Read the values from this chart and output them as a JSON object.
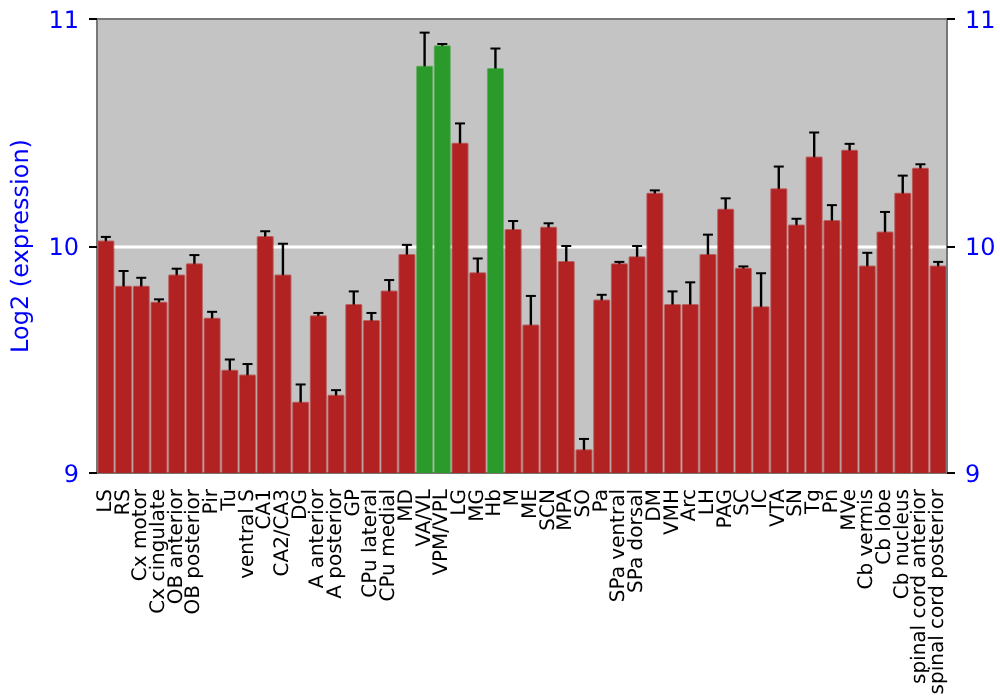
{
  "chart_data": {
    "type": "bar",
    "ylabel": "Log2 (expression)",
    "categories": [
      "LS",
      "RS",
      "Cx motor",
      "Cx cingulate",
      "OB anterior",
      "OB posterior",
      "Pir",
      "Tu",
      "ventral S",
      "CA1",
      "CA2/CA3",
      "DG",
      "A anterior",
      "A posterior",
      "GP",
      "CPu lateral",
      "CPu medial",
      "MD",
      "VA/VL",
      "VPM/VPL",
      "LG",
      "MG",
      "Hb",
      "M",
      "ME",
      "SCN",
      "MPA",
      "SO",
      "Pa",
      "SPa ventral",
      "SPa dorsal",
      "DM",
      "VMH",
      "Arc",
      "LH",
      "PAG",
      "SC",
      "IC",
      "VTA",
      "SN",
      "Tg",
      "Pn",
      "MVe",
      "Cb vermis",
      "Cb lobe",
      "Cb nucleus",
      "spinal cord anterior",
      "spinal cord posterior"
    ],
    "values": [
      10.02,
      9.82,
      9.82,
      9.75,
      9.87,
      9.92,
      9.68,
      9.45,
      9.43,
      10.04,
      9.87,
      9.31,
      9.69,
      9.34,
      9.74,
      9.67,
      9.8,
      9.96,
      10.79,
      10.88,
      10.45,
      9.88,
      10.78,
      10.07,
      9.65,
      10.08,
      9.93,
      9.1,
      9.76,
      9.92,
      9.95,
      10.23,
      9.74,
      9.74,
      9.96,
      10.16,
      9.9,
      9.73,
      10.25,
      10.09,
      10.39,
      10.11,
      10.42,
      9.91,
      10.06,
      10.23,
      10.34,
      9.91
    ],
    "errors": [
      0.02,
      0.07,
      0.04,
      0.015,
      0.03,
      0.04,
      0.03,
      0.05,
      0.05,
      0.025,
      0.14,
      0.08,
      0.015,
      0.025,
      0.06,
      0.035,
      0.05,
      0.045,
      0.15,
      0.01,
      0.09,
      0.065,
      0.09,
      0.04,
      0.13,
      0.02,
      0.07,
      0.05,
      0.025,
      0.01,
      0.05,
      0.015,
      0.06,
      0.1,
      0.09,
      0.05,
      0.01,
      0.15,
      0.1,
      0.03,
      0.11,
      0.07,
      0.03,
      0.06,
      0.09,
      0.08,
      0.02,
      0.02
    ],
    "colors": [
      "#b22222",
      "#b22222",
      "#b22222",
      "#b22222",
      "#b22222",
      "#b22222",
      "#b22222",
      "#b22222",
      "#b22222",
      "#b22222",
      "#b22222",
      "#b22222",
      "#b22222",
      "#b22222",
      "#b22222",
      "#b22222",
      "#b22222",
      "#b22222",
      "#2a9a2a",
      "#2a9a2a",
      "#b22222",
      "#b22222",
      "#2a9a2a",
      "#b22222",
      "#b22222",
      "#b22222",
      "#b22222",
      "#b22222",
      "#b22222",
      "#b22222",
      "#b22222",
      "#b22222",
      "#b22222",
      "#b22222",
      "#b22222",
      "#b22222",
      "#b22222",
      "#b22222",
      "#b22222",
      "#b22222",
      "#b22222",
      "#b22222",
      "#b22222",
      "#b22222",
      "#b22222",
      "#b22222",
      "#b22222",
      "#b22222"
    ],
    "ylim": [
      9,
      11
    ],
    "yticks": [
      9,
      10,
      11
    ],
    "y2lim": [
      9,
      11
    ],
    "y2ticks": [
      9,
      10,
      11
    ],
    "grid": "y"
  }
}
